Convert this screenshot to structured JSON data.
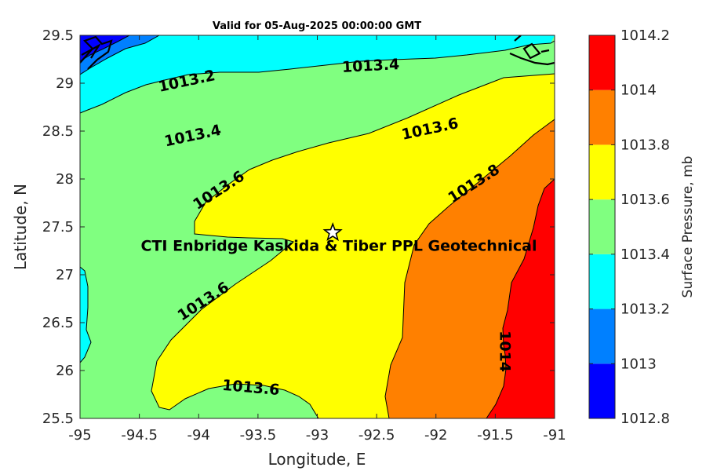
{
  "chart_data": {
    "type": "contour",
    "title": "Valid for 05-Aug-2025 00:00:00 GMT",
    "xlabel": "Longitude, E",
    "ylabel": "Latitude, N",
    "xlim": [
      -95,
      -91
    ],
    "ylim": [
      25.5,
      29.5
    ],
    "xticks": [
      -95,
      -94.5,
      -94,
      -93.5,
      -93,
      -92.5,
      -92,
      -91.5,
      -91
    ],
    "yticks": [
      25.5,
      26,
      26.5,
      27,
      27.5,
      28,
      28.5,
      29,
      29.5
    ],
    "xtick_labels": [
      "-95",
      "-94.5",
      "-94",
      "-93.5",
      "-93",
      "-92.5",
      "-92",
      "-91.5",
      "-91"
    ],
    "ytick_labels": [
      "25.5",
      "26",
      "26.5",
      "27",
      "27.5",
      "28",
      "28.5",
      "29",
      "29.5"
    ],
    "colorbar": {
      "label": "Surface Pressure, mb",
      "levels": [
        1012.8,
        1013,
        1013.2,
        1013.4,
        1013.6,
        1013.8,
        1014,
        1014.2
      ],
      "tick_labels": [
        "1012.8",
        "1013",
        "1013.2",
        "1013.4",
        "1013.6",
        "1013.8",
        "1014",
        "1014.2"
      ],
      "colors": [
        "#0000ff",
        "#0080ff",
        "#00ffff",
        "#80ff80",
        "#ffff00",
        "#ff8000",
        "#ff0000",
        "#800000"
      ]
    },
    "contour_labels": [
      {
        "text": "1013.2",
        "lon": -94.1,
        "lat": 29.02
      },
      {
        "text": "1013.4",
        "lon": -94.05,
        "lat": 28.45
      },
      {
        "text": "1013.4",
        "lon": -92.55,
        "lat": 29.18
      },
      {
        "text": "1013.6",
        "lon": -92.05,
        "lat": 28.52
      },
      {
        "text": "1013.8",
        "lon": -91.68,
        "lat": 27.95
      },
      {
        "text": "1013.6",
        "lon": -93.83,
        "lat": 27.88
      },
      {
        "text": "1013.6",
        "lon": -93.96,
        "lat": 26.72
      },
      {
        "text": "1013.6",
        "lon": -93.56,
        "lat": 25.82
      },
      {
        "text": "1014",
        "lon": -91.42,
        "lat": 26.2
      }
    ],
    "site": {
      "name": "CTI Enbridge  Kaskida & Tiber PPL Geotechnical",
      "lon": -92.87,
      "lat": 27.44
    }
  }
}
